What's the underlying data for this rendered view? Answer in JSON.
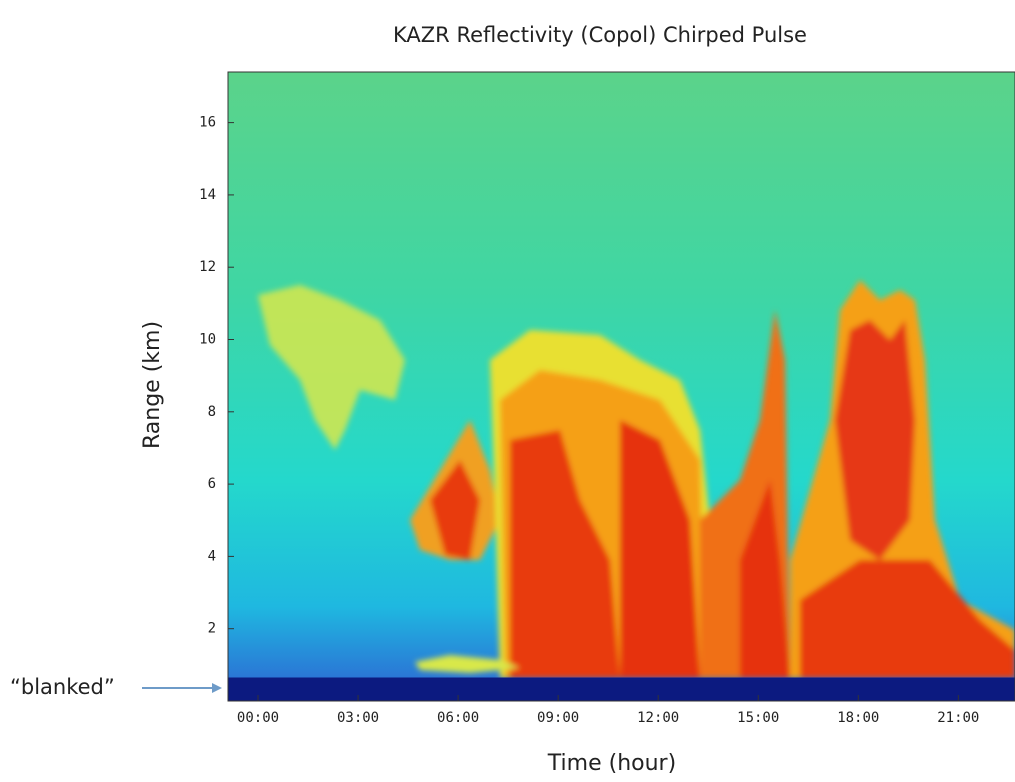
{
  "chart_data": {
    "type": "time-height",
    "title": "KAZR Reflectivity (Copol) Chirped Pulse",
    "xlabel": "Time (hour)",
    "ylabel": "Range (km)",
    "annotation": "“blanked”",
    "blanked_range": [
      0,
      0.65
    ],
    "xlim": [
      -0.9,
      22.7
    ],
    "xticks": [
      {
        "value": 0,
        "label": "00:00"
      },
      {
        "value": 3,
        "label": "03:00"
      },
      {
        "value": 6,
        "label": "06:00"
      },
      {
        "value": 9,
        "label": "09:00"
      },
      {
        "value": 12,
        "label": "12:00"
      },
      {
        "value": 15,
        "label": "15:00"
      },
      {
        "value": 18,
        "label": "18:00"
      },
      {
        "value": 21,
        "label": "21:00"
      }
    ],
    "ylim": [
      0,
      17.4
    ],
    "yticks": [
      2,
      4,
      6,
      8,
      10,
      12,
      14,
      16
    ]
  }
}
